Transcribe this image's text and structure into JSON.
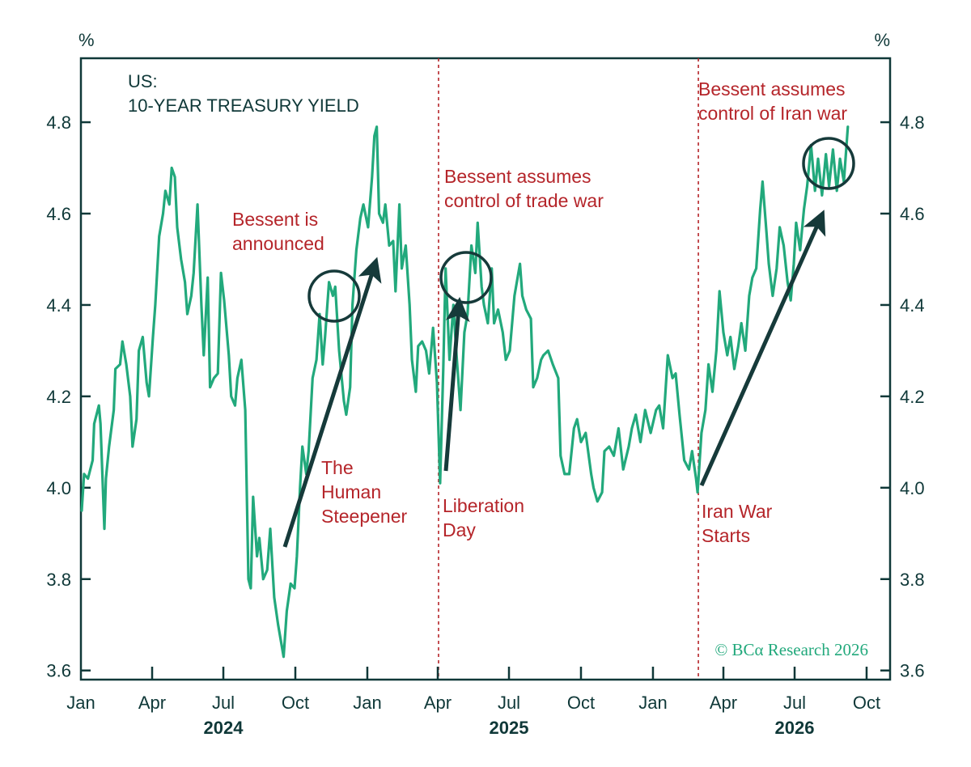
{
  "chart_data": {
    "type": "line",
    "title_line1": "US:",
    "title_line2": "10-YEAR TREASURY YIELD",
    "left_unit": "%",
    "right_unit": "%",
    "ylim": [
      3.58,
      4.94
    ],
    "yticks": [
      "3.6",
      "3.8",
      "4.0",
      "4.2",
      "4.4",
      "4.6",
      "4.8"
    ],
    "ytick_values": [
      3.6,
      3.8,
      4.0,
      4.2,
      4.4,
      4.6,
      4.8
    ],
    "x_start": "2024-01-01",
    "x_end": "2026-10-31",
    "month_ticks": [
      {
        "date": "2024-01-01",
        "label": "Jan"
      },
      {
        "date": "2024-04-01",
        "label": "Apr"
      },
      {
        "date": "2024-07-01",
        "label": "Jul"
      },
      {
        "date": "2024-10-01",
        "label": "Oct"
      },
      {
        "date": "2025-01-01",
        "label": "Jan"
      },
      {
        "date": "2025-04-01",
        "label": "Apr"
      },
      {
        "date": "2025-07-01",
        "label": "Jul"
      },
      {
        "date": "2025-10-01",
        "label": "Oct"
      },
      {
        "date": "2026-01-01",
        "label": "Jan"
      },
      {
        "date": "2026-04-01",
        "label": "Apr"
      },
      {
        "date": "2026-07-01",
        "label": "Jul"
      },
      {
        "date": "2026-10-01",
        "label": "Oct"
      }
    ],
    "years": [
      {
        "date": "2024-07-01",
        "label": "2024"
      },
      {
        "date": "2025-07-01",
        "label": "2025"
      },
      {
        "date": "2026-07-01",
        "label": "2026"
      }
    ],
    "series": [
      {
        "color": "#22a97c",
        "points": [
          [
            "2024-01-02",
            3.95
          ],
          [
            "2024-01-05",
            4.03
          ],
          [
            "2024-01-10",
            4.02
          ],
          [
            "2024-01-16",
            4.06
          ],
          [
            "2024-01-18",
            4.14
          ],
          [
            "2024-01-24",
            4.18
          ],
          [
            "2024-01-26",
            4.14
          ],
          [
            "2024-01-31",
            3.91
          ],
          [
            "2024-02-02",
            4.02
          ],
          [
            "2024-02-06",
            4.09
          ],
          [
            "2024-02-12",
            4.17
          ],
          [
            "2024-02-14",
            4.26
          ],
          [
            "2024-02-20",
            4.27
          ],
          [
            "2024-02-23",
            4.32
          ],
          [
            "2024-02-28",
            4.27
          ],
          [
            "2024-03-04",
            4.2
          ],
          [
            "2024-03-07",
            4.09
          ],
          [
            "2024-03-12",
            4.15
          ],
          [
            "2024-03-15",
            4.3
          ],
          [
            "2024-03-20",
            4.33
          ],
          [
            "2024-03-25",
            4.23
          ],
          [
            "2024-03-28",
            4.2
          ],
          [
            "2024-04-02",
            4.33
          ],
          [
            "2024-04-05",
            4.4
          ],
          [
            "2024-04-10",
            4.55
          ],
          [
            "2024-04-15",
            4.6
          ],
          [
            "2024-04-18",
            4.65
          ],
          [
            "2024-04-23",
            4.62
          ],
          [
            "2024-04-26",
            4.7
          ],
          [
            "2024-04-30",
            4.68
          ],
          [
            "2024-05-03",
            4.57
          ],
          [
            "2024-05-08",
            4.5
          ],
          [
            "2024-05-13",
            4.45
          ],
          [
            "2024-05-16",
            4.38
          ],
          [
            "2024-05-21",
            4.42
          ],
          [
            "2024-05-24",
            4.47
          ],
          [
            "2024-05-29",
            4.62
          ],
          [
            "2024-06-03",
            4.4
          ],
          [
            "2024-06-06",
            4.29
          ],
          [
            "2024-06-11",
            4.46
          ],
          [
            "2024-06-14",
            4.22
          ],
          [
            "2024-06-19",
            4.24
          ],
          [
            "2024-06-24",
            4.25
          ],
          [
            "2024-06-28",
            4.47
          ],
          [
            "2024-07-02",
            4.41
          ],
          [
            "2024-07-08",
            4.29
          ],
          [
            "2024-07-11",
            4.2
          ],
          [
            "2024-07-16",
            4.18
          ],
          [
            "2024-07-19",
            4.24
          ],
          [
            "2024-07-24",
            4.28
          ],
          [
            "2024-07-29",
            4.17
          ],
          [
            "2024-08-02",
            3.8
          ],
          [
            "2024-08-05",
            3.78
          ],
          [
            "2024-08-08",
            3.98
          ],
          [
            "2024-08-13",
            3.85
          ],
          [
            "2024-08-16",
            3.89
          ],
          [
            "2024-08-21",
            3.8
          ],
          [
            "2024-08-26",
            3.82
          ],
          [
            "2024-08-30",
            3.91
          ],
          [
            "2024-09-04",
            3.76
          ],
          [
            "2024-09-09",
            3.7
          ],
          [
            "2024-09-13",
            3.66
          ],
          [
            "2024-09-16",
            3.63
          ],
          [
            "2024-09-20",
            3.73
          ],
          [
            "2024-09-25",
            3.79
          ],
          [
            "2024-09-30",
            3.78
          ],
          [
            "2024-10-03",
            3.85
          ],
          [
            "2024-10-07",
            4.0
          ],
          [
            "2024-10-10",
            4.09
          ],
          [
            "2024-10-15",
            4.03
          ],
          [
            "2024-10-18",
            4.08
          ],
          [
            "2024-10-23",
            4.24
          ],
          [
            "2024-10-28",
            4.28
          ],
          [
            "2024-11-01",
            4.38
          ],
          [
            "2024-11-05",
            4.27
          ],
          [
            "2024-11-08",
            4.33
          ],
          [
            "2024-11-13",
            4.45
          ],
          [
            "2024-11-18",
            4.42
          ],
          [
            "2024-11-21",
            4.44
          ],
          [
            "2024-11-26",
            4.3
          ],
          [
            "2024-12-02",
            4.19
          ],
          [
            "2024-12-05",
            4.16
          ],
          [
            "2024-12-10",
            4.22
          ],
          [
            "2024-12-13",
            4.4
          ],
          [
            "2024-12-18",
            4.52
          ],
          [
            "2024-12-23",
            4.59
          ],
          [
            "2024-12-27",
            4.62
          ],
          [
            "2025-01-02",
            4.57
          ],
          [
            "2025-01-07",
            4.68
          ],
          [
            "2025-01-10",
            4.77
          ],
          [
            "2025-01-13",
            4.79
          ],
          [
            "2025-01-16",
            4.6
          ],
          [
            "2025-01-21",
            4.58
          ],
          [
            "2025-01-24",
            4.62
          ],
          [
            "2025-01-29",
            4.53
          ],
          [
            "2025-02-03",
            4.54
          ],
          [
            "2025-02-06",
            4.43
          ],
          [
            "2025-02-11",
            4.62
          ],
          [
            "2025-02-14",
            4.48
          ],
          [
            "2025-02-19",
            4.53
          ],
          [
            "2025-02-24",
            4.4
          ],
          [
            "2025-02-27",
            4.28
          ],
          [
            "2025-03-04",
            4.21
          ],
          [
            "2025-03-07",
            4.31
          ],
          [
            "2025-03-12",
            4.32
          ],
          [
            "2025-03-17",
            4.3
          ],
          [
            "2025-03-21",
            4.25
          ],
          [
            "2025-03-26",
            4.35
          ],
          [
            "2025-03-31",
            4.23
          ],
          [
            "2025-04-04",
            4.01
          ],
          [
            "2025-04-08",
            4.26
          ],
          [
            "2025-04-11",
            4.48
          ],
          [
            "2025-04-16",
            4.28
          ],
          [
            "2025-04-21",
            4.4
          ],
          [
            "2025-04-25",
            4.29
          ],
          [
            "2025-04-30",
            4.17
          ],
          [
            "2025-05-05",
            4.34
          ],
          [
            "2025-05-09",
            4.38
          ],
          [
            "2025-05-14",
            4.53
          ],
          [
            "2025-05-19",
            4.47
          ],
          [
            "2025-05-22",
            4.58
          ],
          [
            "2025-05-27",
            4.44
          ],
          [
            "2025-05-30",
            4.4
          ],
          [
            "2025-06-04",
            4.36
          ],
          [
            "2025-06-09",
            4.48
          ],
          [
            "2025-06-12",
            4.36
          ],
          [
            "2025-06-17",
            4.39
          ],
          [
            "2025-06-23",
            4.34
          ],
          [
            "2025-06-27",
            4.28
          ],
          [
            "2025-07-02",
            4.3
          ],
          [
            "2025-07-08",
            4.42
          ],
          [
            "2025-07-15",
            4.49
          ],
          [
            "2025-07-18",
            4.42
          ],
          [
            "2025-07-23",
            4.39
          ],
          [
            "2025-07-29",
            4.37
          ],
          [
            "2025-08-01",
            4.22
          ],
          [
            "2025-08-06",
            4.24
          ],
          [
            "2025-08-11",
            4.28
          ],
          [
            "2025-08-14",
            4.29
          ],
          [
            "2025-08-20",
            4.3
          ],
          [
            "2025-08-26",
            4.27
          ],
          [
            "2025-09-02",
            4.24
          ],
          [
            "2025-09-05",
            4.07
          ],
          [
            "2025-09-10",
            4.03
          ],
          [
            "2025-09-16",
            4.03
          ],
          [
            "2025-09-22",
            4.13
          ],
          [
            "2025-09-26",
            4.15
          ],
          [
            "2025-10-01",
            4.1
          ],
          [
            "2025-10-07",
            4.12
          ],
          [
            "2025-10-14",
            4.03
          ],
          [
            "2025-10-17",
            4.0
          ],
          [
            "2025-10-22",
            3.97
          ],
          [
            "2025-10-28",
            3.99
          ],
          [
            "2025-10-31",
            4.08
          ],
          [
            "2025-11-06",
            4.09
          ],
          [
            "2025-11-12",
            4.07
          ],
          [
            "2025-11-18",
            4.13
          ],
          [
            "2025-11-24",
            4.04
          ],
          [
            "2025-12-01",
            4.09
          ],
          [
            "2025-12-05",
            4.13
          ],
          [
            "2025-12-10",
            4.16
          ],
          [
            "2025-12-16",
            4.1
          ],
          [
            "2025-12-22",
            4.17
          ],
          [
            "2025-12-29",
            4.12
          ],
          [
            "2026-01-05",
            4.17
          ],
          [
            "2026-01-09",
            4.18
          ],
          [
            "2026-01-14",
            4.13
          ],
          [
            "2026-01-20",
            4.29
          ],
          [
            "2026-01-26",
            4.24
          ],
          [
            "2026-01-30",
            4.25
          ],
          [
            "2026-02-04",
            4.16
          ],
          [
            "2026-02-10",
            4.06
          ],
          [
            "2026-02-16",
            4.04
          ],
          [
            "2026-02-20",
            4.08
          ],
          [
            "2026-02-25",
            4.02
          ],
          [
            "2026-02-27",
            3.99
          ],
          [
            "2026-03-04",
            4.12
          ],
          [
            "2026-03-09",
            4.17
          ],
          [
            "2026-03-13",
            4.27
          ],
          [
            "2026-03-18",
            4.21
          ],
          [
            "2026-03-23",
            4.3
          ],
          [
            "2026-03-27",
            4.43
          ],
          [
            "2026-04-01",
            4.34
          ],
          [
            "2026-04-06",
            4.29
          ],
          [
            "2026-04-10",
            4.33
          ],
          [
            "2026-04-15",
            4.26
          ],
          [
            "2026-04-20",
            4.31
          ],
          [
            "2026-04-24",
            4.36
          ],
          [
            "2026-04-29",
            4.3
          ],
          [
            "2026-05-04",
            4.42
          ],
          [
            "2026-05-08",
            4.46
          ],
          [
            "2026-05-13",
            4.48
          ],
          [
            "2026-05-18",
            4.61
          ],
          [
            "2026-05-21",
            4.67
          ],
          [
            "2026-05-26",
            4.56
          ],
          [
            "2026-05-29",
            4.49
          ],
          [
            "2026-06-03",
            4.42
          ],
          [
            "2026-06-08",
            4.48
          ],
          [
            "2026-06-12",
            4.57
          ],
          [
            "2026-06-17",
            4.53
          ],
          [
            "2026-06-22",
            4.45
          ],
          [
            "2026-06-26",
            4.41
          ],
          [
            "2026-06-30",
            4.49
          ],
          [
            "2026-07-03",
            4.58
          ],
          [
            "2026-07-08",
            4.52
          ],
          [
            "2026-07-13",
            4.61
          ],
          [
            "2026-07-17",
            4.66
          ],
          [
            "2026-07-22",
            4.75
          ],
          [
            "2026-07-27",
            4.65
          ],
          [
            "2026-07-31",
            4.72
          ],
          [
            "2026-08-05",
            4.64
          ],
          [
            "2026-08-10",
            4.73
          ],
          [
            "2026-08-14",
            4.66
          ],
          [
            "2026-08-19",
            4.74
          ],
          [
            "2026-08-24",
            4.65
          ],
          [
            "2026-08-28",
            4.72
          ],
          [
            "2026-09-02",
            4.67
          ],
          [
            "2026-09-07",
            4.79
          ]
        ]
      }
    ],
    "event_lines": [
      {
        "date": "2025-04-02",
        "color": "#b5252a"
      },
      {
        "date": "2026-02-28",
        "color": "#b5252a"
      }
    ],
    "annotations": [
      {
        "id": "bessent-announced",
        "lines": [
          "Bessent is",
          "announced"
        ]
      },
      {
        "id": "human-steepener",
        "lines": [
          "The",
          "Human",
          "Steepener"
        ]
      },
      {
        "id": "trade-war",
        "lines": [
          "Bessent assumes",
          "control of trade war"
        ]
      },
      {
        "id": "liberation-day",
        "lines": [
          "Liberation",
          "Day"
        ]
      },
      {
        "id": "iran-war-control",
        "lines": [
          "Bessent assumes",
          "control of Iran war"
        ]
      },
      {
        "id": "iran-war-starts",
        "lines": [
          "Iran War",
          "Starts"
        ]
      }
    ],
    "credit": "© BCα Research 2026",
    "grid": false,
    "colors": {
      "line": "#22a97c",
      "axis": "#0f3838",
      "annotation": "#b5252a",
      "arrow": "#163a3a"
    }
  }
}
